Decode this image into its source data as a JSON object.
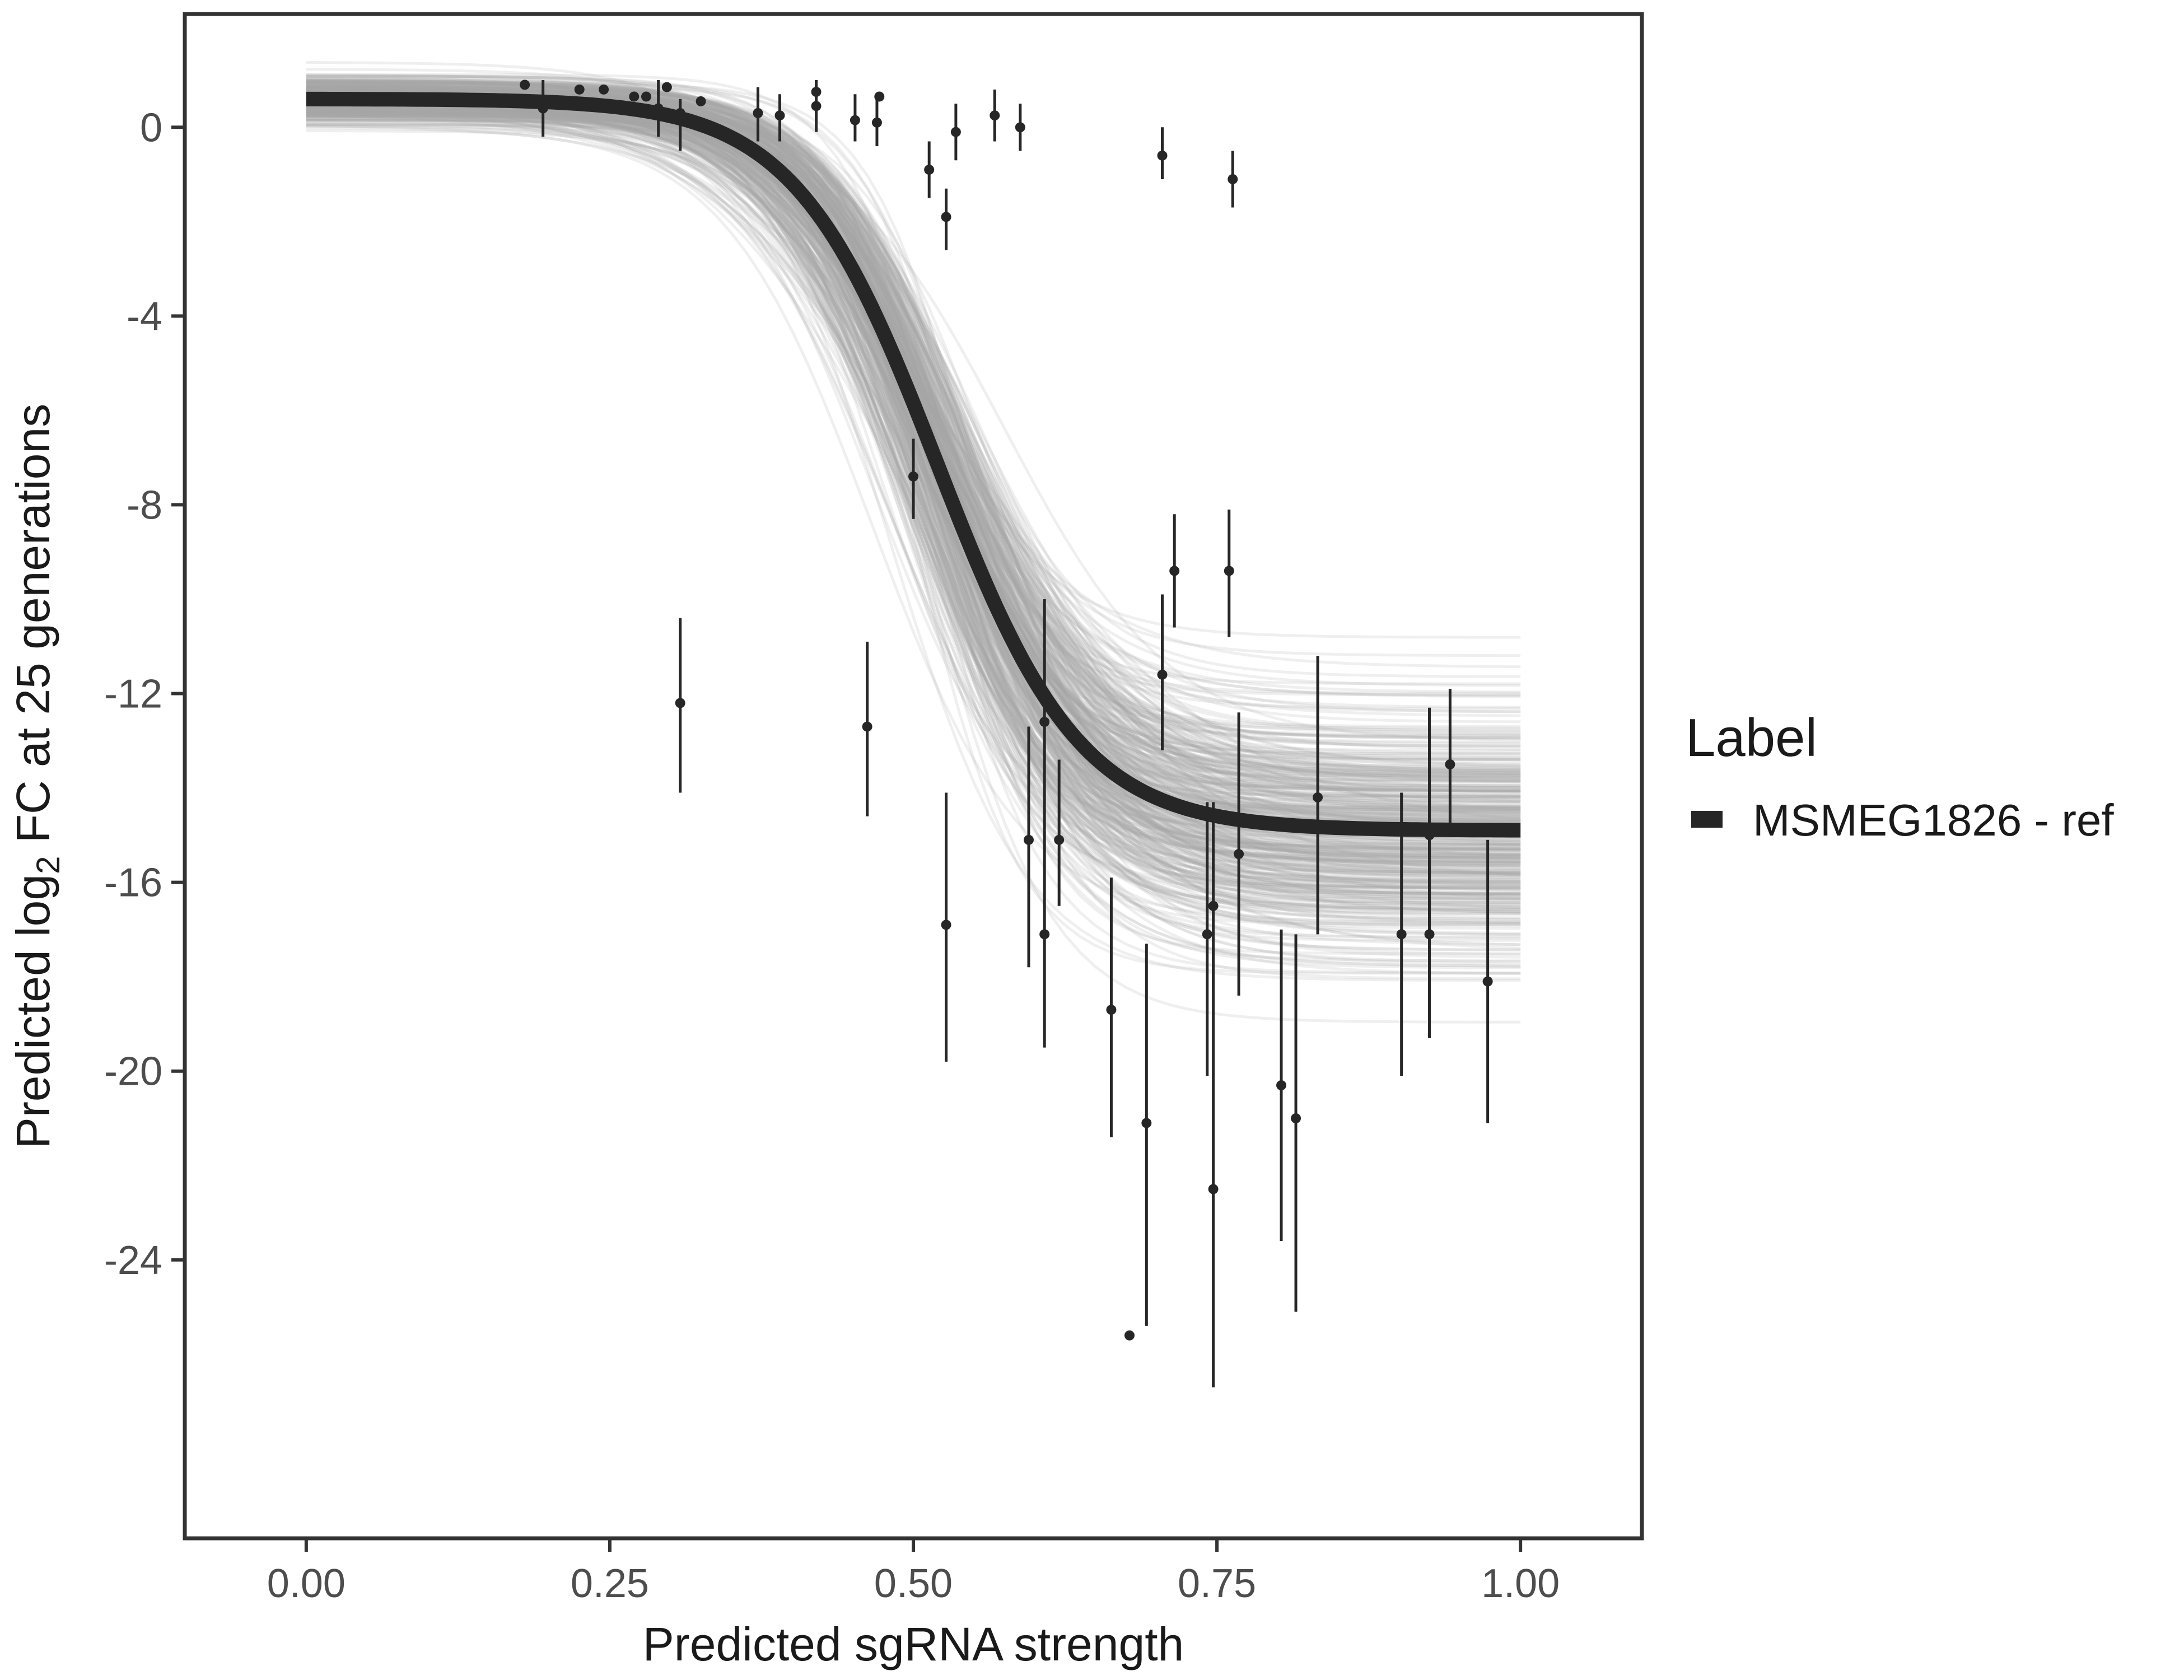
{
  "chart_data": {
    "type": "scatter",
    "xlabel": "Predicted sgRNA strength",
    "ylabel_parts": [
      "Predicted  log",
      "2",
      " FC at 25 generations"
    ],
    "xlim": [
      -0.1,
      1.1
    ],
    "ylim": [
      -29.9,
      2.4
    ],
    "x_ticks": [
      0,
      0.25,
      0.5,
      0.75,
      1
    ],
    "x_tick_labels": [
      "0.00",
      "0.25",
      "0.50",
      "0.75",
      "1.00"
    ],
    "y_ticks": [
      0,
      -4,
      -8,
      -12,
      -16,
      -20,
      -24
    ],
    "y_tick_labels": [
      "0",
      "-4",
      "-8",
      "-12",
      "-16",
      "-20",
      "-24"
    ],
    "grid": false,
    "legend": {
      "position": "right",
      "title": "Label",
      "entries": [
        {
          "label": "MSMEG1826 - ref",
          "color": "#262626"
        }
      ]
    },
    "colors": {
      "fit_line": "#262626",
      "posterior_draws": "#a6a6a6",
      "points": "#262626",
      "frame": "#333333"
    },
    "fit_curve": {
      "model": "logistic",
      "upper": 0.6,
      "lower": -14.9,
      "midpoint": 0.52,
      "slope": 17
    },
    "posterior_draws": {
      "count": 400,
      "x_range": [
        0,
        1
      ]
    },
    "points": [
      {
        "x": 0.18,
        "y": 0.9,
        "ymin": 0.9,
        "ymax": 0.9
      },
      {
        "x": 0.195,
        "y": 0.4,
        "ymin": -0.2,
        "ymax": 1.0
      },
      {
        "x": 0.225,
        "y": 0.8,
        "ymin": 0.8,
        "ymax": 0.8
      },
      {
        "x": 0.245,
        "y": 0.8,
        "ymin": 0.8,
        "ymax": 0.8
      },
      {
        "x": 0.27,
        "y": 0.65,
        "ymin": 0.65,
        "ymax": 0.65
      },
      {
        "x": 0.28,
        "y": 0.65,
        "ymin": 0.65,
        "ymax": 0.65
      },
      {
        "x": 0.29,
        "y": 0.4,
        "ymin": -0.2,
        "ymax": 1.0
      },
      {
        "x": 0.297,
        "y": 0.85,
        "ymin": 0.85,
        "ymax": 0.85
      },
      {
        "x": 0.308,
        "y": 0.3,
        "ymin": -0.5,
        "ymax": 0.6
      },
      {
        "x": 0.325,
        "y": 0.55,
        "ymin": 0.55,
        "ymax": 0.55
      },
      {
        "x": 0.308,
        "y": -12.2,
        "ymin": -14.1,
        "ymax": -10.4
      },
      {
        "x": 0.372,
        "y": 0.3,
        "ymin": -0.3,
        "ymax": 0.85
      },
      {
        "x": 0.39,
        "y": 0.25,
        "ymin": -0.3,
        "ymax": 0.7
      },
      {
        "x": 0.42,
        "y": 0.45,
        "ymin": -0.1,
        "ymax": 1.0
      },
      {
        "x": 0.42,
        "y": 0.75,
        "ymin": 0.75,
        "ymax": 0.75
      },
      {
        "x": 0.452,
        "y": 0.15,
        "ymin": -0.3,
        "ymax": 0.7
      },
      {
        "x": 0.462,
        "y": -12.7,
        "ymin": -14.6,
        "ymax": -10.9
      },
      {
        "x": 0.47,
        "y": 0.1,
        "ymin": -0.4,
        "ymax": 0.7
      },
      {
        "x": 0.472,
        "y": 0.65,
        "ymin": 0.65,
        "ymax": 0.65
      },
      {
        "x": 0.5,
        "y": -7.4,
        "ymin": -8.3,
        "ymax": -6.6
      },
      {
        "x": 0.513,
        "y": -0.9,
        "ymin": -1.5,
        "ymax": -0.3
      },
      {
        "x": 0.527,
        "y": -1.9,
        "ymin": -2.6,
        "ymax": -1.3
      },
      {
        "x": 0.527,
        "y": -16.9,
        "ymin": -19.8,
        "ymax": -14.1
      },
      {
        "x": 0.535,
        "y": -0.1,
        "ymin": -0.7,
        "ymax": 0.5
      },
      {
        "x": 0.567,
        "y": 0.25,
        "ymin": -0.3,
        "ymax": 0.8
      },
      {
        "x": 0.588,
        "y": 0.0,
        "ymin": -0.5,
        "ymax": 0.5
      },
      {
        "x": 0.595,
        "y": -15.1,
        "ymin": -17.8,
        "ymax": -12.7
      },
      {
        "x": 0.608,
        "y": -12.6,
        "ymin": -14.9,
        "ymax": -10.0
      },
      {
        "x": 0.608,
        "y": -17.1,
        "ymin": -19.5,
        "ymax": -14.9
      },
      {
        "x": 0.62,
        "y": -15.1,
        "ymin": -16.5,
        "ymax": -13.4
      },
      {
        "x": 0.663,
        "y": -18.7,
        "ymin": -21.4,
        "ymax": -15.9
      },
      {
        "x": 0.678,
        "y": -25.6,
        "ymin": -25.6,
        "ymax": -25.6
      },
      {
        "x": 0.692,
        "y": -21.1,
        "ymin": -25.4,
        "ymax": -17.3
      },
      {
        "x": 0.705,
        "y": -0.6,
        "ymin": -1.1,
        "ymax": 0.0
      },
      {
        "x": 0.705,
        "y": -11.6,
        "ymin": -13.2,
        "ymax": -9.9
      },
      {
        "x": 0.715,
        "y": -9.4,
        "ymin": -10.6,
        "ymax": -8.2
      },
      {
        "x": 0.742,
        "y": -17.1,
        "ymin": -20.1,
        "ymax": -14.3
      },
      {
        "x": 0.747,
        "y": -16.5,
        "ymin": -18.2,
        "ymax": -14.3
      },
      {
        "x": 0.747,
        "y": -22.5,
        "ymin": -26.7,
        "ymax": -17.4
      },
      {
        "x": 0.76,
        "y": -9.4,
        "ymin": -10.8,
        "ymax": -8.1
      },
      {
        "x": 0.763,
        "y": -1.1,
        "ymin": -1.7,
        "ymax": -0.5
      },
      {
        "x": 0.768,
        "y": -15.4,
        "ymin": -18.4,
        "ymax": -12.4
      },
      {
        "x": 0.803,
        "y": -20.3,
        "ymin": -23.6,
        "ymax": -17.0
      },
      {
        "x": 0.815,
        "y": -21.0,
        "ymin": -25.1,
        "ymax": -17.1
      },
      {
        "x": 0.833,
        "y": -14.2,
        "ymin": -17.1,
        "ymax": -11.2
      },
      {
        "x": 0.902,
        "y": -17.1,
        "ymin": -20.1,
        "ymax": -14.1
      },
      {
        "x": 0.925,
        "y": -15.0,
        "ymin": -16.9,
        "ymax": -12.3
      },
      {
        "x": 0.925,
        "y": -17.1,
        "ymin": -19.3,
        "ymax": -14.7
      },
      {
        "x": 0.942,
        "y": -13.5,
        "ymin": -15.0,
        "ymax": -11.9
      },
      {
        "x": 0.973,
        "y": -18.1,
        "ymin": -21.1,
        "ymax": -15.1
      }
    ]
  }
}
